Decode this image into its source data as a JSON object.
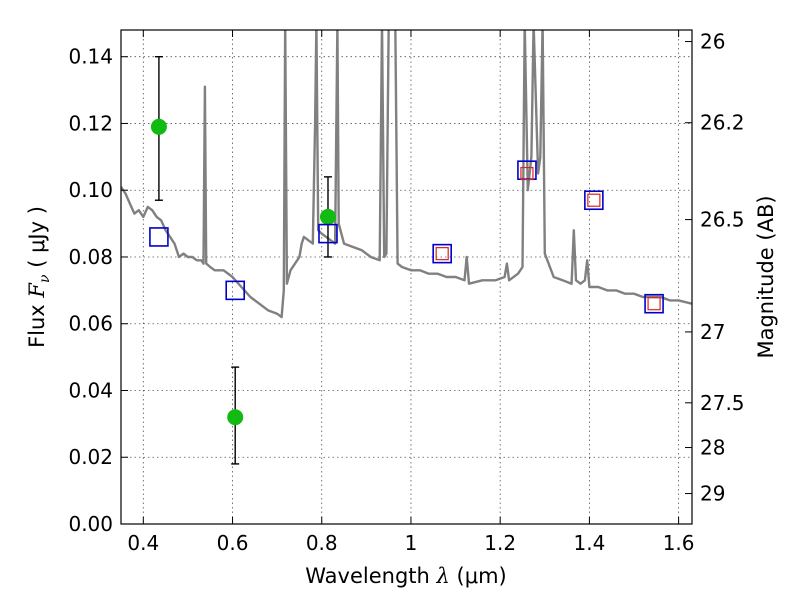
{
  "chart_data": {
    "type": "scatter",
    "xlabel_text": "Wavelength",
    "xlabel_sym": "λ",
    "xlabel_unit": "(μm)",
    "ylabel_text": "Flux",
    "ylabel_sym": "F",
    "ylabel_sub": "ν",
    "ylabel_unit": "( μJy )",
    "y2label": "Magnitude (AB)",
    "xlim": [
      0.35,
      1.63
    ],
    "ylim": [
      0.0,
      0.148
    ],
    "grid": true,
    "x_ticks": [
      0.4,
      0.6,
      0.8,
      1.0,
      1.2,
      1.4,
      1.6
    ],
    "x_tick_labels": [
      "0.4",
      "0.6",
      "0.8",
      "1",
      "1.2",
      "1.4",
      "1.6"
    ],
    "y_ticks": [
      0.0,
      0.02,
      0.04,
      0.06,
      0.08,
      0.1,
      0.12,
      0.14
    ],
    "y_tick_labels": [
      "0.00",
      "0.02",
      "0.04",
      "0.06",
      "0.08",
      "0.10",
      "0.12",
      "0.14"
    ],
    "y2_ticks": [
      {
        "label": "26",
        "mag": 26.0
      },
      {
        "label": "26.2",
        "mag": 26.2
      },
      {
        "label": "26.5",
        "mag": 26.5
      },
      {
        "label": "27",
        "mag": 27.0
      },
      {
        "label": "27.5",
        "mag": 27.5
      },
      {
        "label": "28",
        "mag": 28.0
      },
      {
        "label": "29",
        "mag": 29.0
      }
    ],
    "series": [
      {
        "kind": "observed",
        "color": "#11bb11",
        "points": [
          {
            "x": 0.435,
            "y": 0.119,
            "err_lo": 0.097,
            "err_hi": 0.14
          },
          {
            "x": 0.606,
            "y": 0.032,
            "err_lo": 0.018,
            "err_hi": 0.047
          },
          {
            "x": 0.814,
            "y": 0.092,
            "err_lo": 0.08,
            "err_hi": 0.104
          }
        ]
      },
      {
        "kind": "model",
        "color": "#0000cc",
        "points": [
          {
            "x": 0.435,
            "y": 0.086
          },
          {
            "x": 0.606,
            "y": 0.07
          },
          {
            "x": 0.814,
            "y": 0.087
          },
          {
            "x": 1.07,
            "y": 0.081
          },
          {
            "x": 1.26,
            "y": 0.106
          },
          {
            "x": 1.41,
            "y": 0.097
          },
          {
            "x": 1.545,
            "y": 0.066
          }
        ]
      },
      {
        "kind": "model-alt",
        "color": "#dd2222",
        "points": [
          {
            "x": 1.07,
            "y": 0.081
          },
          {
            "x": 1.26,
            "y": 0.105
          },
          {
            "x": 1.41,
            "y": 0.097
          },
          {
            "x": 1.545,
            "y": 0.066
          }
        ]
      }
    ],
    "spectrum": {
      "color": "#808080",
      "points": [
        [
          0.35,
          0.101
        ],
        [
          0.36,
          0.099
        ],
        [
          0.37,
          0.096
        ],
        [
          0.38,
          0.093
        ],
        [
          0.39,
          0.094
        ],
        [
          0.4,
          0.092
        ],
        [
          0.41,
          0.095
        ],
        [
          0.42,
          0.094
        ],
        [
          0.43,
          0.092
        ],
        [
          0.44,
          0.091
        ],
        [
          0.45,
          0.088
        ],
        [
          0.46,
          0.086
        ],
        [
          0.47,
          0.084
        ],
        [
          0.48,
          0.08
        ],
        [
          0.49,
          0.081
        ],
        [
          0.5,
          0.08
        ],
        [
          0.51,
          0.08
        ],
        [
          0.52,
          0.079
        ],
        [
          0.53,
          0.079
        ],
        [
          0.535,
          0.078
        ],
        [
          0.538,
          0.131
        ],
        [
          0.541,
          0.078
        ],
        [
          0.55,
          0.077
        ],
        [
          0.56,
          0.076
        ],
        [
          0.58,
          0.076
        ],
        [
          0.6,
          0.074
        ],
        [
          0.62,
          0.071
        ],
        [
          0.64,
          0.068
        ],
        [
          0.66,
          0.066
        ],
        [
          0.68,
          0.064
        ],
        [
          0.7,
          0.063
        ],
        [
          0.71,
          0.062
        ],
        [
          0.715,
          0.07
        ],
        [
          0.718,
          0.15
        ],
        [
          0.722,
          0.072
        ],
        [
          0.73,
          0.076
        ],
        [
          0.74,
          0.078
        ],
        [
          0.75,
          0.08
        ],
        [
          0.755,
          0.084
        ],
        [
          0.76,
          0.086
        ],
        [
          0.77,
          0.085
        ],
        [
          0.78,
          0.084
        ],
        [
          0.785,
          0.12
        ],
        [
          0.788,
          0.15
        ],
        [
          0.792,
          0.088
        ],
        [
          0.8,
          0.087
        ],
        [
          0.82,
          0.085
        ],
        [
          0.83,
          0.084
        ],
        [
          0.835,
          0.15
        ],
        [
          0.838,
          0.09
        ],
        [
          0.85,
          0.084
        ],
        [
          0.87,
          0.083
        ],
        [
          0.89,
          0.082
        ],
        [
          0.91,
          0.08
        ],
        [
          0.93,
          0.079
        ],
        [
          0.935,
          0.15
        ],
        [
          0.94,
          0.08
        ],
        [
          0.945,
          0.081
        ],
        [
          0.95,
          0.15
        ],
        [
          0.955,
          0.15
        ],
        [
          0.96,
          0.15
        ],
        [
          0.965,
          0.15
        ],
        [
          0.97,
          0.078
        ],
        [
          0.98,
          0.077
        ],
        [
          1.0,
          0.076
        ],
        [
          1.02,
          0.076
        ],
        [
          1.04,
          0.075
        ],
        [
          1.06,
          0.075
        ],
        [
          1.08,
          0.074
        ],
        [
          1.1,
          0.074
        ],
        [
          1.12,
          0.073
        ],
        [
          1.125,
          0.08
        ],
        [
          1.13,
          0.072
        ],
        [
          1.16,
          0.073
        ],
        [
          1.19,
          0.073
        ],
        [
          1.21,
          0.074
        ],
        [
          1.215,
          0.078
        ],
        [
          1.22,
          0.073
        ],
        [
          1.24,
          0.075
        ],
        [
          1.25,
          0.077
        ],
        [
          1.255,
          0.15
        ],
        [
          1.262,
          0.1
        ],
        [
          1.27,
          0.11
        ],
        [
          1.275,
          0.15
        ],
        [
          1.285,
          0.105
        ],
        [
          1.29,
          0.11
        ],
        [
          1.295,
          0.15
        ],
        [
          1.3,
          0.081
        ],
        [
          1.32,
          0.074
        ],
        [
          1.34,
          0.073
        ],
        [
          1.36,
          0.072
        ],
        [
          1.365,
          0.088
        ],
        [
          1.37,
          0.073
        ],
        [
          1.38,
          0.072
        ],
        [
          1.39,
          0.073
        ],
        [
          1.395,
          0.079
        ],
        [
          1.4,
          0.071
        ],
        [
          1.42,
          0.071
        ],
        [
          1.44,
          0.07
        ],
        [
          1.46,
          0.07
        ],
        [
          1.48,
          0.069
        ],
        [
          1.5,
          0.069
        ],
        [
          1.52,
          0.068
        ],
        [
          1.54,
          0.068
        ],
        [
          1.56,
          0.068
        ],
        [
          1.58,
          0.067
        ],
        [
          1.6,
          0.067
        ],
        [
          1.63,
          0.066
        ]
      ]
    }
  }
}
